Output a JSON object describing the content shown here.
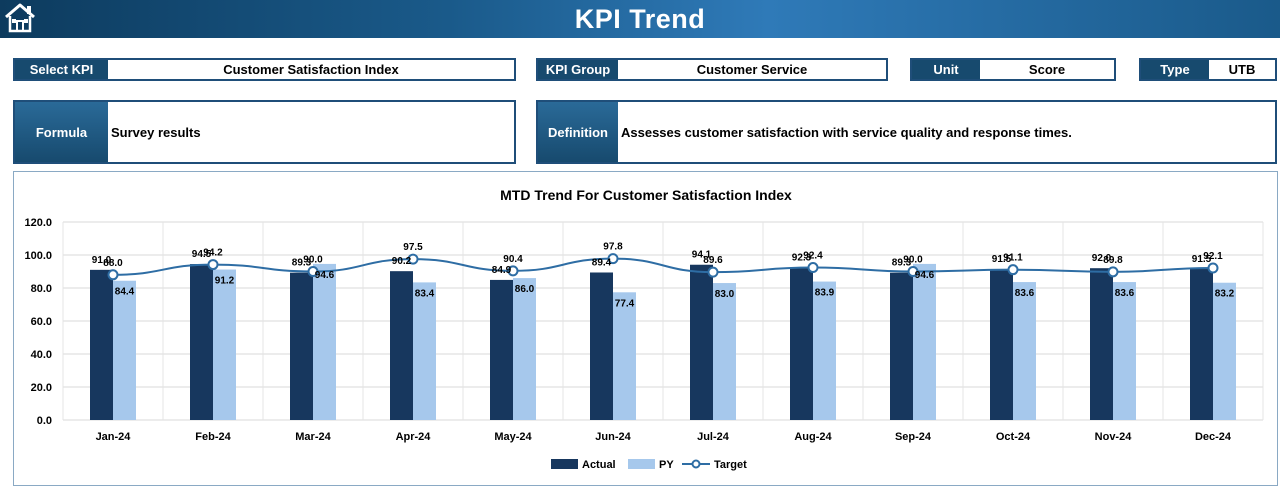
{
  "header": {
    "title": "KPI Trend",
    "home_icon": "home-icon"
  },
  "fields": {
    "select_kpi": {
      "label": "Select KPI",
      "value": "Customer Satisfaction Index"
    },
    "kpi_group": {
      "label": "KPI Group",
      "value": "Customer Service"
    },
    "unit": {
      "label": "Unit",
      "value": "Score"
    },
    "type": {
      "label": "Type",
      "value": "UTB"
    }
  },
  "formula": {
    "label": "Formula",
    "value": "Survey results"
  },
  "definition": {
    "label": "Definition",
    "value": "Assesses customer satisfaction with service quality and response times."
  },
  "colors": {
    "header": "#1f4e79",
    "actual": "#17375e",
    "py": "#a6c8ec",
    "target": "#2e6da4"
  },
  "chart_data": {
    "type": "bar",
    "title": "MTD Trend For Customer Satisfaction Index",
    "categories": [
      "Jan-24",
      "Feb-24",
      "Mar-24",
      "Apr-24",
      "May-24",
      "Jun-24",
      "Jul-24",
      "Aug-24",
      "Sep-24",
      "Oct-24",
      "Nov-24",
      "Dec-24"
    ],
    "y_ticks": [
      "0.0",
      "20.0",
      "40.0",
      "60.0",
      "80.0",
      "100.0",
      "120.0"
    ],
    "ylim": [
      0,
      120
    ],
    "grid": true,
    "legend_position": "bottom",
    "series": [
      {
        "name": "Actual",
        "kind": "bar",
        "values": [
          91.0,
          94.5,
          89.3,
          90.2,
          84.9,
          89.4,
          94.1,
          92.3,
          89.3,
          91.5,
          92.0,
          91.5
        ],
        "labels": [
          "91.0",
          "94.5",
          "89.3",
          "90.2",
          "84.9",
          "89.4",
          "94.1",
          "92.3",
          "89.3",
          "91.5",
          "92.0",
          "91.5"
        ]
      },
      {
        "name": "PY",
        "kind": "bar",
        "values": [
          84.4,
          91.2,
          94.6,
          83.4,
          86.0,
          77.4,
          83.0,
          83.9,
          94.6,
          83.6,
          83.6,
          83.2
        ],
        "labels": [
          "84.4",
          "91.2",
          "94.6",
          "83.4",
          "86.0",
          "77.4",
          "83.0",
          "83.9",
          "94.6",
          "83.6",
          "83.6",
          "83.2"
        ]
      },
      {
        "name": "Target",
        "kind": "line",
        "values": [
          88.0,
          94.2,
          90.0,
          97.5,
          90.4,
          97.8,
          89.6,
          92.4,
          90.0,
          91.1,
          89.8,
          92.1
        ],
        "labels": [
          "88.0",
          "94.2",
          "90.0",
          "97.5",
          "90.4",
          "97.8",
          "89.6",
          "92.4",
          "90.0",
          "91.1",
          "89.8",
          "92.1"
        ]
      }
    ]
  }
}
